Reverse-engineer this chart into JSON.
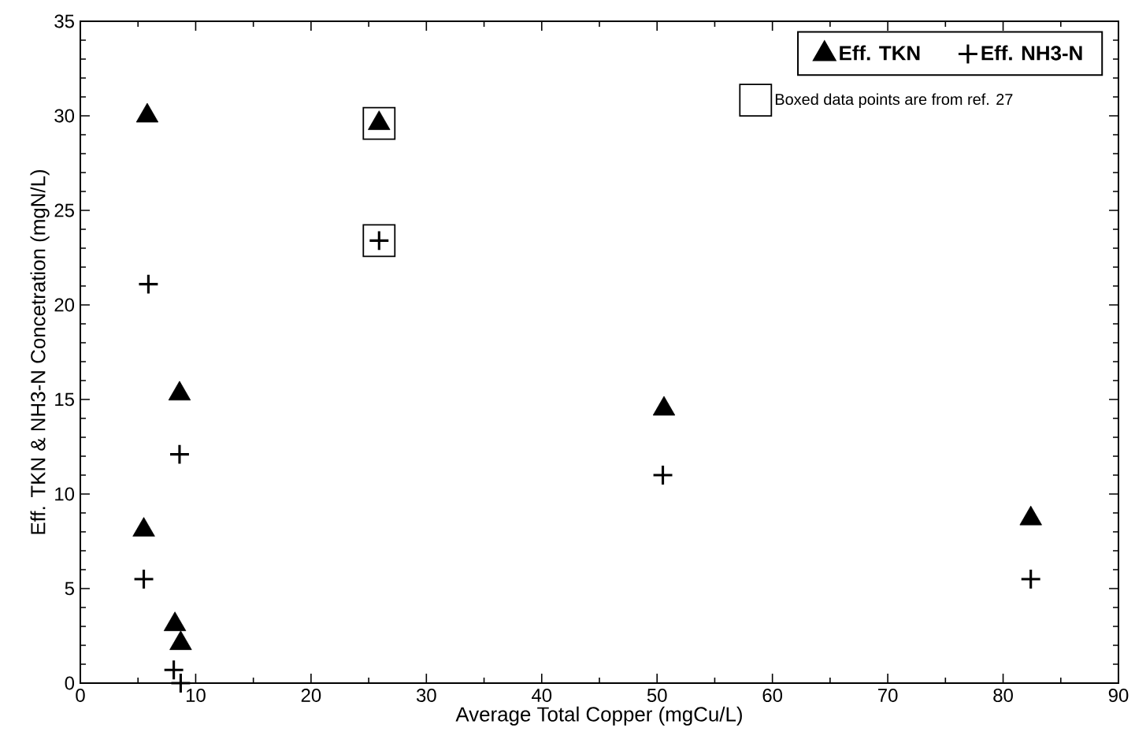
{
  "chart_data": {
    "type": "scatter",
    "xlabel": "Average Total Copper (mgCu/L)",
    "ylabel": "Eff. TKN & NH3-N Concetration (mgN/L)",
    "xlim": [
      0,
      90
    ],
    "xticks": [
      0,
      10,
      20,
      30,
      40,
      50,
      60,
      70,
      80,
      90
    ],
    "ylim": [
      0,
      35
    ],
    "yticks": [
      0,
      5,
      10,
      15,
      20,
      25,
      30,
      35
    ],
    "legend": "top right",
    "grid": false,
    "series": [
      {
        "name": "Eff. TKN",
        "color": "#000000",
        "marker": "triangle",
        "x": [
          5.8,
          25.9,
          8.6,
          50.6,
          5.5,
          82.4,
          8.2,
          8.7
        ],
        "values": [
          30.0,
          29.6,
          15.3,
          14.5,
          8.1,
          8.7,
          3.1,
          2.1
        ]
      },
      {
        "name": "Eff. NH3-N",
        "color": "#000000",
        "marker": "cross",
        "x": [
          5.9,
          25.9,
          8.6,
          50.5,
          5.5,
          82.4,
          8.1,
          8.7
        ],
        "values": [
          21.1,
          23.4,
          12.1,
          11.0,
          5.5,
          5.5,
          0.7,
          0.0
        ]
      },
      {
        "name": "Boxed data points are from ref. 27",
        "color": "#000000",
        "marker": "square",
        "x": [
          25.9,
          25.9
        ],
        "values": [
          29.6,
          23.4
        ]
      }
    ]
  }
}
